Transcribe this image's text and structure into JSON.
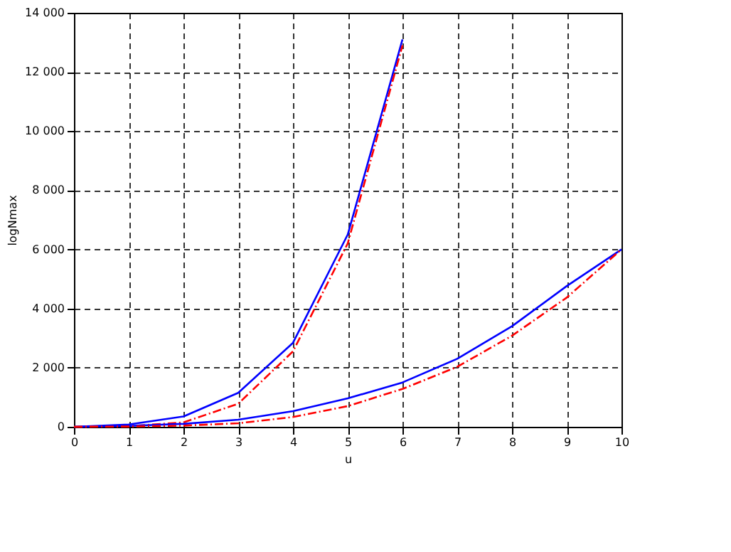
{
  "chart_data": {
    "type": "line",
    "xlabel": "u",
    "ylabel": "logNmax",
    "grid": true,
    "xlim": [
      0,
      10
    ],
    "xticks": [
      0,
      1,
      2,
      3,
      4,
      5,
      6,
      7,
      8,
      9,
      10
    ],
    "ylim": [
      0,
      14000
    ],
    "yticks": [
      0,
      {
        "value": 2000,
        "label": "2 000"
      },
      {
        "value": 4000,
        "label": "4 000"
      },
      {
        "value": 6000,
        "label": "6 000"
      },
      {
        "value": 8000,
        "label": "8 000"
      },
      {
        "value": 10000,
        "label": "10 000"
      },
      {
        "value": 12000,
        "label": "12 000"
      },
      {
        "value": 14000,
        "label": "14 000"
      }
    ],
    "series": [
      {
        "color": "#0000ff",
        "line_style": "solid",
        "x": [
          0,
          1,
          2,
          3,
          4,
          5,
          6
        ],
        "values": [
          0,
          80,
          350,
          1150,
          2840,
          6500,
          13100
        ]
      },
      {
        "color": "#ff0000",
        "line_style": "dashed",
        "x": [
          0,
          1,
          2,
          3,
          4,
          5,
          6
        ],
        "values": [
          0,
          20,
          150,
          780,
          2550,
          6200,
          12900
        ]
      },
      {
        "color": "#0000ff",
        "line_style": "solid",
        "x": [
          0,
          1,
          2,
          3,
          4,
          5,
          6,
          7,
          8,
          9,
          10
        ],
        "values": [
          0,
          30,
          100,
          240,
          530,
          960,
          1500,
          2300,
          3400,
          4760,
          6000
        ]
      },
      {
        "color": "#ff0000",
        "line_style": "dashed",
        "x": [
          0,
          1,
          2,
          3,
          4,
          5,
          6,
          7,
          8,
          9,
          10
        ],
        "values": [
          0,
          10,
          40,
          120,
          330,
          700,
          1280,
          2030,
          3080,
          4370,
          6000
        ]
      }
    ]
  }
}
